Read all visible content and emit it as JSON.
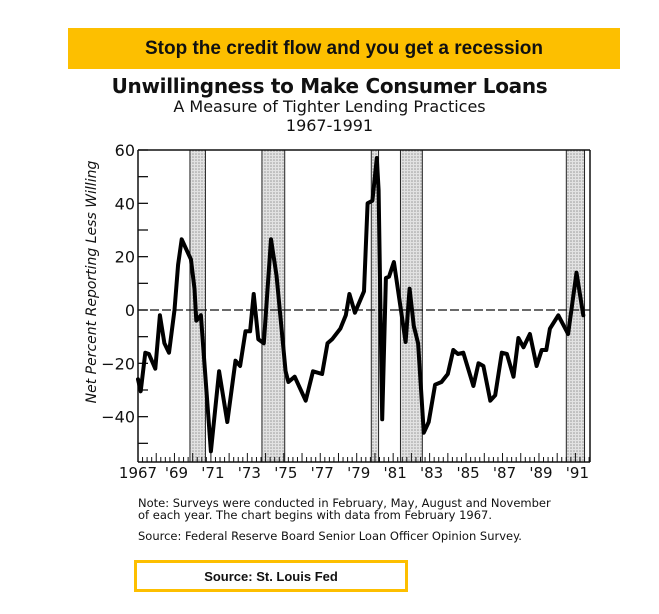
{
  "banner": "Stop the credit flow and you get a recession",
  "footer_source": "Source: St. Louis Fed",
  "chart_data": {
    "type": "line",
    "title": "Unwillingness to Make Consumer Loans",
    "subtitle": "A Measure of Tighter Lending Practices",
    "period": "1967-1991",
    "xlabel": "",
    "ylabel": "Net Percent Reporting Less Willing",
    "xlim": [
      1967,
      1991.8
    ],
    "ylim": [
      -57,
      60
    ],
    "yticks": [
      60,
      40,
      20,
      0,
      -20,
      -40
    ],
    "ytick_labels": [
      "60",
      "40",
      "20",
      "0",
      "−20",
      "−40"
    ],
    "xticks": [
      1967,
      1969,
      1971,
      1973,
      1975,
      1977,
      1979,
      1981,
      1983,
      1985,
      1987,
      1989,
      1991
    ],
    "xtick_labels": [
      "1967",
      "'69",
      "'71",
      "'73",
      "'75",
      "'77",
      "'79",
      "'81",
      "'83",
      "'85",
      "'87",
      "'89",
      "'91"
    ],
    "reference_line": 0,
    "recessions": [
      [
        1969.85,
        1970.7
      ],
      [
        1973.8,
        1975.05
      ],
      [
        1979.8,
        1980.2
      ],
      [
        1981.4,
        1982.6
      ],
      [
        1990.5,
        1991.5
      ]
    ],
    "series": [
      {
        "name": "Net percent reporting less willing",
        "x": [
          1967.0,
          1967.15,
          1967.4,
          1967.6,
          1967.95,
          1968.2,
          1968.45,
          1968.7,
          1969.0,
          1969.2,
          1969.4,
          1969.7,
          1969.9,
          1970.1,
          1970.2,
          1970.45,
          1971.0,
          1971.45,
          1971.9,
          1972.35,
          1972.6,
          1972.9,
          1973.15,
          1973.35,
          1973.6,
          1973.9,
          1974.3,
          1974.6,
          1975.1,
          1975.25,
          1975.6,
          1976.2,
          1976.6,
          1977.1,
          1977.4,
          1977.65,
          1978.1,
          1978.4,
          1978.6,
          1978.9,
          1979.4,
          1979.6,
          1979.86,
          1980.1,
          1980.2,
          1980.4,
          1980.6,
          1980.77,
          1981.04,
          1981.68,
          1981.9,
          1982.13,
          1982.37,
          1982.68,
          1982.95,
          1983.3,
          1983.65,
          1984.0,
          1984.3,
          1984.55,
          1984.85,
          1985.4,
          1985.68,
          1985.95,
          1986.33,
          1986.6,
          1986.96,
          1987.24,
          1987.6,
          1987.87,
          1988.15,
          1988.5,
          1988.87,
          1989.15,
          1989.4,
          1989.6,
          1990.06,
          1990.6,
          1991.06,
          1991.43
        ],
        "values": [
          -26,
          -30.5,
          -16,
          -16.5,
          -22,
          -2,
          -12.5,
          -16,
          0,
          17,
          26.5,
          22,
          19,
          8,
          -4,
          -2,
          -53,
          -23,
          -42,
          -19,
          -21,
          -8,
          -8,
          6,
          -11,
          -12.5,
          26.5,
          13,
          -23,
          -27,
          -25,
          -34,
          -23,
          -24,
          -12.5,
          -11,
          -7,
          -2,
          6,
          -1,
          7,
          40,
          41,
          57,
          45,
          -41,
          12,
          12.5,
          18,
          -12,
          8,
          -6,
          -12.5,
          -46,
          -42,
          -28,
          -27,
          -24,
          -15,
          -16.5,
          -16,
          -28.5,
          -20,
          -21,
          -34,
          -32,
          -16,
          -16.5,
          -25,
          -10.5,
          -14,
          -9,
          -21,
          -15,
          -15,
          -7,
          -2,
          -9,
          14,
          -2
        ]
      }
    ],
    "notes": [
      "Note:  Surveys were conducted in February, May, August and November",
      "of each year. The chart begins with data from February 1967."
    ],
    "source": "Source:  Federal Reserve Board Senior Loan Officer Opinion Survey."
  }
}
